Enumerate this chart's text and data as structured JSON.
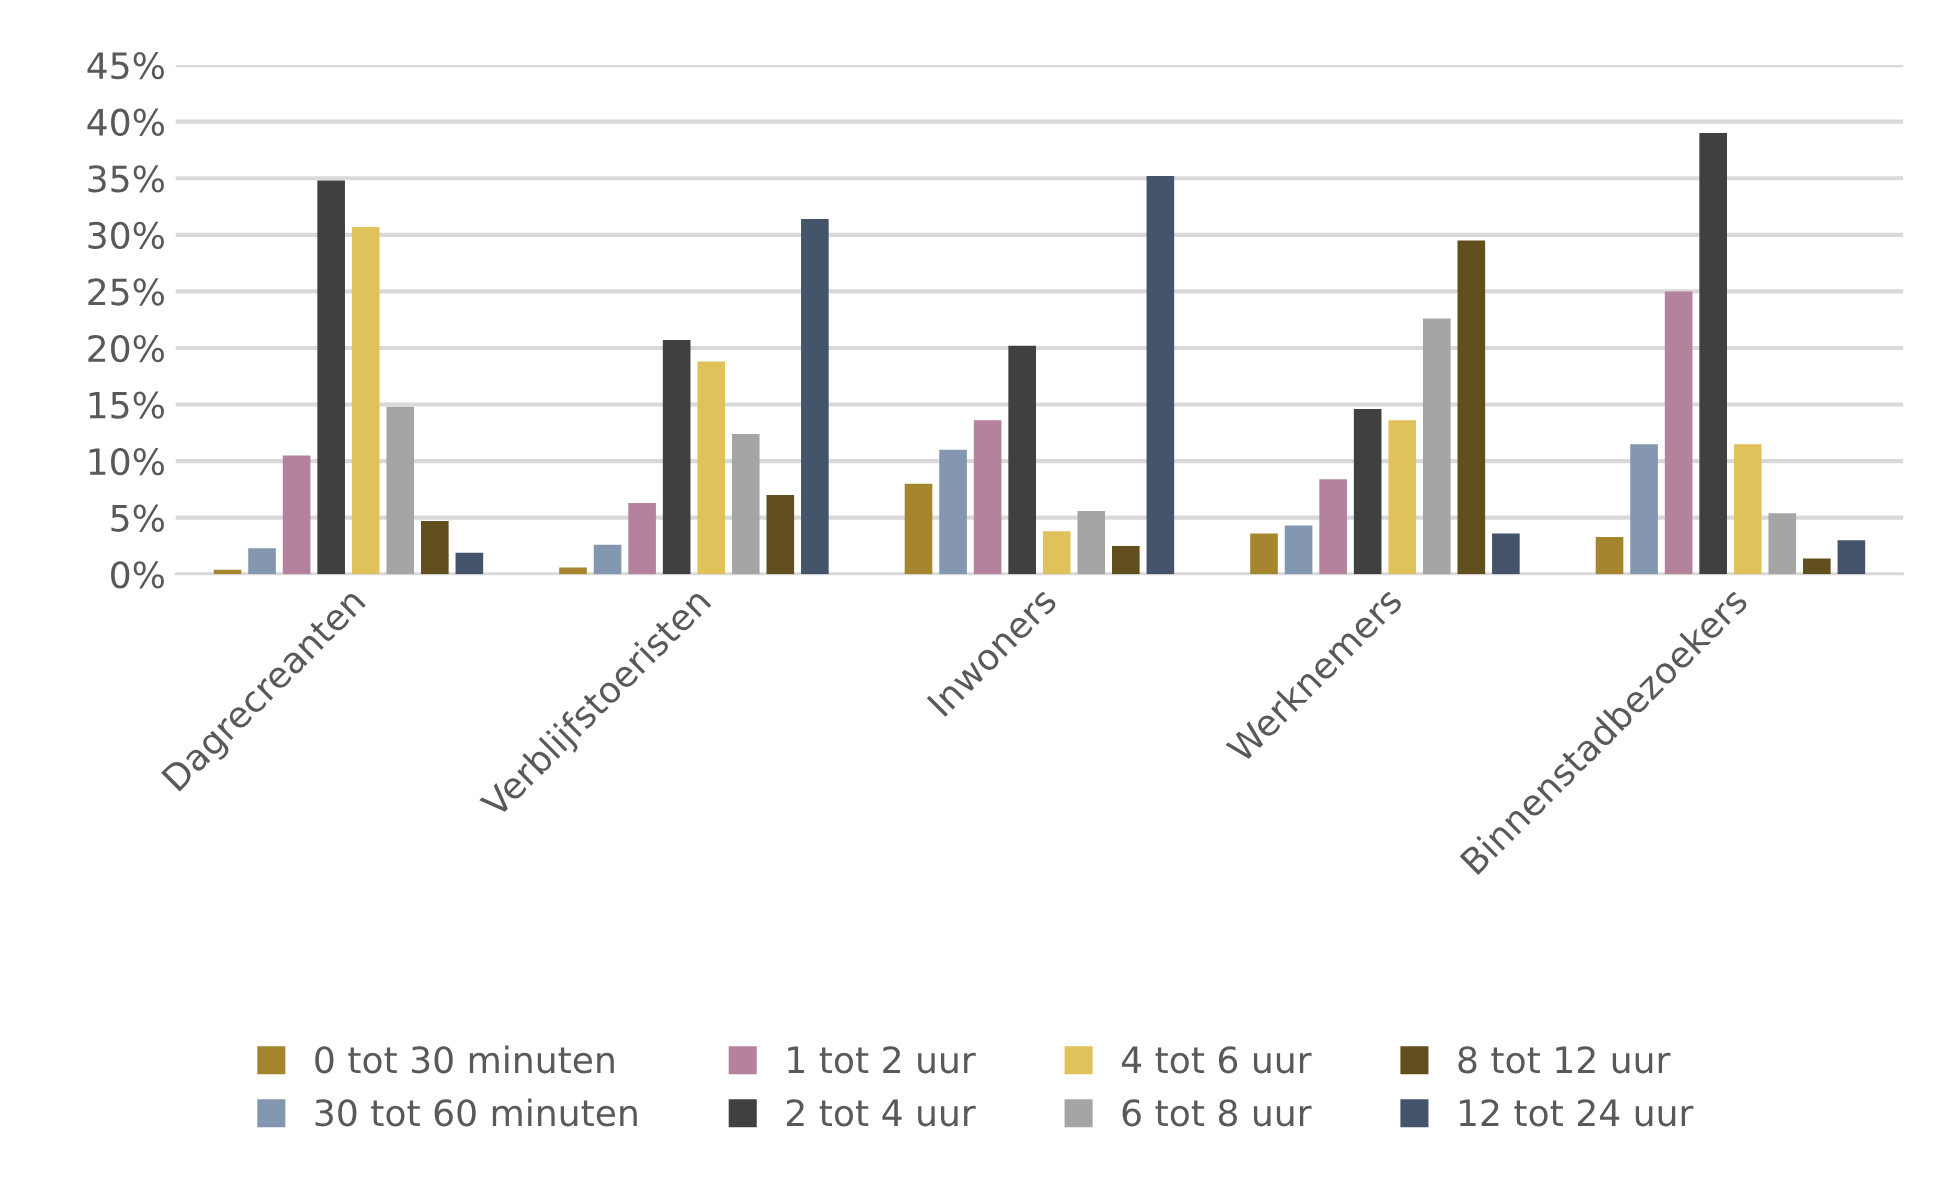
{
  "chart_data": {
    "type": "bar",
    "categories": [
      "Dagrecreanten",
      "Verblijfstoeristen",
      "Inwoners",
      "Werknemers",
      "Binnenstadbezoekers"
    ],
    "series": [
      {
        "name": "0 tot 30 minuten",
        "color": "#a5862e",
        "values": [
          0.4,
          0.6,
          8.0,
          3.6,
          3.3
        ]
      },
      {
        "name": "30 tot 60 minuten",
        "color": "#8497b0",
        "values": [
          2.3,
          2.6,
          11.0,
          4.3,
          11.5
        ]
      },
      {
        "name": "1 tot 2 uur",
        "color": "#b5829e",
        "values": [
          10.5,
          6.3,
          13.6,
          8.4,
          25.0
        ]
      },
      {
        "name": "2 tot 4 uur",
        "color": "#404040",
        "values": [
          34.8,
          20.7,
          20.2,
          14.6,
          39.0
        ]
      },
      {
        "name": "4 tot 6 uur",
        "color": "#dfc35a",
        "values": [
          30.7,
          18.8,
          3.8,
          13.6,
          11.5
        ]
      },
      {
        "name": "6 tot 8 uur",
        "color": "#a5a5a5",
        "values": [
          14.8,
          12.4,
          5.6,
          22.6,
          5.4
        ]
      },
      {
        "name": "8 tot 12 uur",
        "color": "#614f1e",
        "values": [
          4.7,
          7.0,
          2.5,
          29.5,
          1.4
        ]
      },
      {
        "name": "12 tot 24 uur",
        "color": "#44546a",
        "values": [
          1.9,
          31.4,
          35.2,
          3.6,
          3.0
        ]
      }
    ],
    "ylim": [
      0,
      45
    ],
    "yticks": [
      {
        "value": 0,
        "label": "0%"
      },
      {
        "value": 5,
        "label": "5%"
      },
      {
        "value": 10,
        "label": "10%"
      },
      {
        "value": 15,
        "label": "15%"
      },
      {
        "value": 20,
        "label": "20%"
      },
      {
        "value": 25,
        "label": "25%"
      },
      {
        "value": 30,
        "label": "30%"
      },
      {
        "value": 35,
        "label": "35%"
      },
      {
        "value": 40,
        "label": "40%"
      },
      {
        "value": 45,
        "label": "45%"
      }
    ],
    "grid": "y",
    "legend": "bottom"
  }
}
